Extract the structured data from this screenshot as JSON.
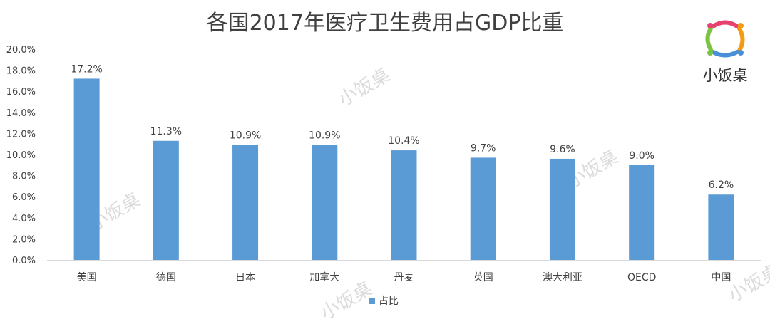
{
  "chart_data": {
    "type": "bar",
    "title": "各国2017年医疗卫生费用占GDP比重",
    "categories": [
      "美国",
      "德国",
      "日本",
      "加拿大",
      "丹麦",
      "英国",
      "澳大利亚",
      "OECD",
      "中国"
    ],
    "series": [
      {
        "name": "占比",
        "values": [
          17.2,
          11.3,
          10.9,
          10.9,
          10.4,
          9.7,
          9.6,
          9.0,
          6.2
        ],
        "data_labels": [
          "17.2%",
          "11.3%",
          "10.9%",
          "10.9%",
          "10.4%",
          "9.7%",
          "9.6%",
          "9.0%",
          "6.2%"
        ],
        "color": "#5b9bd5"
      }
    ],
    "yticks": [
      "0.0%",
      "2.0%",
      "4.0%",
      "6.0%",
      "8.0%",
      "10.0%",
      "12.0%",
      "14.0%",
      "16.0%",
      "18.0%",
      "20.0%"
    ],
    "ylim": [
      0,
      20
    ],
    "grid": false,
    "legend": "bottom"
  },
  "logo": {
    "text": "小饭桌"
  },
  "watermark": {
    "text": "小饭桌"
  },
  "colors": {
    "bar": "#5b9bd5",
    "axis": "#d9d9d9",
    "text": "#404040"
  }
}
